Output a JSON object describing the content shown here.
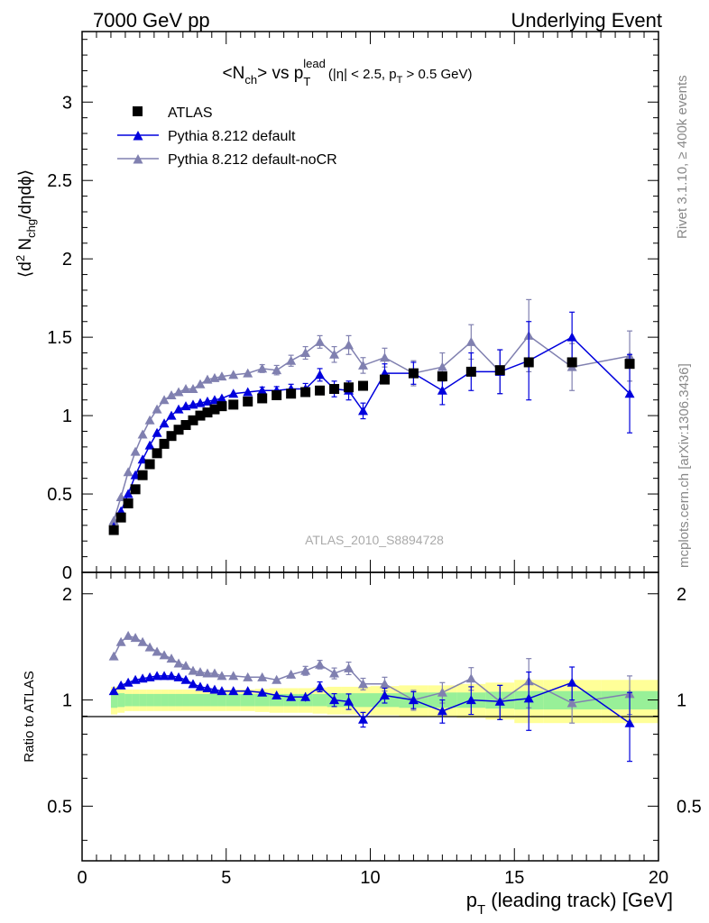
{
  "header": {
    "left": "7000 GeV pp",
    "right": "Underlying Event"
  },
  "side_text": {
    "rivet": "Rivet 3.1.10, ≥ 400k events",
    "mcplots": "mcplots.cern.ch [arXiv:1306.3436]"
  },
  "analysis_id": "ATLAS_2010_S8894728",
  "colors": {
    "atlas": "#000000",
    "default": "#0000dd",
    "nocr": "#8080b0",
    "band_inner": "#98f098",
    "band_outer": "#ffff98"
  },
  "chart_data": [
    {
      "type": "scatter",
      "panel": "main",
      "title": "<N_ch> vs p_T^lead (|η| < 2.5, p_T > 0.5 GeV)",
      "title_parts": {
        "a": "<N",
        "a_sub": "ch",
        "b": "> vs p",
        "b_sub": "T",
        "b_sup": "lead",
        "c": "(|η| < 2.5, p",
        "c_sub": "T",
        "d": " > 0.5 GeV)"
      },
      "ylabel": "⟨d² N_chg/dηdϕ⟩",
      "ylabel_parts": {
        "a": "⟨d",
        "sup": "2",
        "b": " N",
        "sub": "chg",
        "c": "/dηdϕ⟩"
      },
      "xlim": [
        0,
        20
      ],
      "ylim": [
        0,
        3.45
      ],
      "yticks": [
        "0",
        "0.5",
        "1",
        "1.5",
        "2",
        "2.5",
        "3"
      ],
      "ytick_values": [
        0,
        0.5,
        1,
        1.5,
        2,
        2.5,
        3
      ],
      "legend": {
        "placement": "top-left"
      },
      "series": [
        {
          "name": "ATLAS",
          "marker": "square",
          "x": [
            1.1,
            1.35,
            1.6,
            1.85,
            2.1,
            2.35,
            2.6,
            2.85,
            3.1,
            3.35,
            3.6,
            3.85,
            4.1,
            4.35,
            4.6,
            4.85,
            5.25,
            5.75,
            6.25,
            6.75,
            7.25,
            7.75,
            8.25,
            8.75,
            9.25,
            9.75,
            10.5,
            11.5,
            12.5,
            13.5,
            14.5,
            15.5,
            17.0,
            19.0
          ],
          "y": [
            0.27,
            0.35,
            0.44,
            0.53,
            0.62,
            0.69,
            0.76,
            0.82,
            0.87,
            0.91,
            0.94,
            0.97,
            1.0,
            1.02,
            1.04,
            1.06,
            1.07,
            1.09,
            1.11,
            1.13,
            1.14,
            1.15,
            1.16,
            1.17,
            1.18,
            1.19,
            1.23,
            1.27,
            1.25,
            1.28,
            1.29,
            1.34,
            1.34,
            1.33
          ]
        },
        {
          "name": "Pythia 8.212 default",
          "marker": "triangle",
          "x": [
            1.1,
            1.35,
            1.6,
            1.85,
            2.1,
            2.35,
            2.6,
            2.85,
            3.1,
            3.35,
            3.6,
            3.85,
            4.1,
            4.35,
            4.6,
            4.85,
            5.25,
            5.75,
            6.25,
            6.75,
            7.25,
            7.75,
            8.25,
            8.75,
            9.25,
            9.75,
            10.5,
            11.5,
            12.5,
            13.5,
            14.5,
            15.5,
            17.0,
            19.0
          ],
          "y": [
            0.29,
            0.39,
            0.5,
            0.62,
            0.72,
            0.81,
            0.89,
            0.95,
            1.0,
            1.04,
            1.06,
            1.07,
            1.08,
            1.09,
            1.1,
            1.11,
            1.14,
            1.15,
            1.16,
            1.16,
            1.17,
            1.17,
            1.26,
            1.17,
            1.16,
            1.03,
            1.27,
            1.27,
            1.16,
            1.28,
            1.28,
            1.35,
            1.5,
            1.14
          ],
          "yerr": [
            0.003,
            0.004,
            0.005,
            0.005,
            0.006,
            0.007,
            0.008,
            0.008,
            0.009,
            0.01,
            0.01,
            0.012,
            0.012,
            0.014,
            0.015,
            0.016,
            0.018,
            0.02,
            0.022,
            0.025,
            0.03,
            0.035,
            0.04,
            0.05,
            0.06,
            0.05,
            0.06,
            0.07,
            0.09,
            0.12,
            0.14,
            0.25,
            0.16,
            0.25
          ]
        },
        {
          "name": "Pythia 8.212 default-noCR",
          "marker": "triangle",
          "x": [
            1.1,
            1.35,
            1.6,
            1.85,
            2.1,
            2.35,
            2.6,
            2.85,
            3.1,
            3.35,
            3.6,
            3.85,
            4.1,
            4.35,
            4.6,
            4.85,
            5.25,
            5.75,
            6.25,
            6.75,
            7.25,
            7.75,
            8.25,
            8.75,
            9.25,
            9.75,
            10.5,
            11.5,
            12.5,
            13.5,
            14.5,
            15.5,
            17.0,
            19.0
          ],
          "y": [
            0.33,
            0.48,
            0.64,
            0.77,
            0.88,
            0.97,
            1.04,
            1.1,
            1.13,
            1.15,
            1.17,
            1.17,
            1.2,
            1.23,
            1.24,
            1.25,
            1.26,
            1.27,
            1.3,
            1.29,
            1.35,
            1.4,
            1.47,
            1.39,
            1.45,
            1.32,
            1.37,
            1.27,
            1.31,
            1.47,
            1.28,
            1.51,
            1.31,
            1.38
          ],
          "yerr": [
            0.004,
            0.005,
            0.005,
            0.006,
            0.006,
            0.007,
            0.008,
            0.008,
            0.01,
            0.01,
            0.012,
            0.012,
            0.013,
            0.014,
            0.015,
            0.016,
            0.018,
            0.02,
            0.025,
            0.03,
            0.035,
            0.04,
            0.04,
            0.05,
            0.06,
            0.05,
            0.06,
            0.08,
            0.09,
            0.11,
            0.14,
            0.23,
            0.15,
            0.16
          ]
        }
      ]
    },
    {
      "type": "scatter",
      "panel": "ratio",
      "xlabel": "p_T (leading track) [GeV]",
      "xlabel_parts": {
        "a": "p",
        "sub": "T",
        "b": " (leading track) [GeV]"
      },
      "ylabel": "Ratio to ATLAS",
      "xlim": [
        0,
        20
      ],
      "ylim": [
        0.35,
        2.3
      ],
      "yticks": [
        "0.5",
        "1",
        "2"
      ],
      "ytick_values": [
        0.5,
        1,
        2
      ],
      "xticks": [
        "0",
        "5",
        "10",
        "15",
        "20"
      ],
      "xtick_values": [
        0,
        5,
        10,
        15,
        20
      ],
      "reference": 1,
      "band_inner": {
        "x_low": [
          1.0,
          1.225,
          1.475,
          1.725,
          1.975,
          2.225,
          2.475,
          2.725,
          2.975,
          3.225,
          3.475,
          3.725,
          3.975,
          4.225,
          4.475,
          4.725,
          5.0,
          5.5,
          6.0,
          6.5,
          7.0,
          7.5,
          8.0,
          8.5,
          9.0,
          9.5,
          10.0,
          11.0,
          12.0,
          13.0,
          14.0,
          15.0,
          16.0,
          18.0
        ],
        "x_high": [
          1.225,
          1.475,
          1.725,
          1.975,
          2.225,
          2.475,
          2.725,
          2.975,
          3.225,
          3.475,
          3.725,
          3.975,
          4.225,
          4.475,
          4.725,
          5.0,
          5.5,
          6.0,
          6.5,
          7.0,
          7.5,
          8.0,
          8.5,
          9.0,
          9.5,
          10.0,
          11.0,
          12.0,
          13.0,
          14.0,
          15.0,
          16.0,
          18.0,
          20.0
        ],
        "half_width": [
          0.05,
          0.045,
          0.04,
          0.04,
          0.04,
          0.04,
          0.04,
          0.04,
          0.04,
          0.04,
          0.04,
          0.04,
          0.04,
          0.04,
          0.04,
          0.04,
          0.04,
          0.04,
          0.04,
          0.04,
          0.04,
          0.04,
          0.04,
          0.045,
          0.045,
          0.045,
          0.045,
          0.05,
          0.05,
          0.05,
          0.055,
          0.06,
          0.06,
          0.06
        ]
      },
      "band_outer": {
        "half_width": [
          0.09,
          0.08,
          0.07,
          0.07,
          0.07,
          0.07,
          0.07,
          0.07,
          0.07,
          0.07,
          0.07,
          0.07,
          0.07,
          0.07,
          0.07,
          0.07,
          0.07,
          0.07,
          0.075,
          0.08,
          0.08,
          0.08,
          0.085,
          0.09,
          0.09,
          0.09,
          0.095,
          0.1,
          0.1,
          0.11,
          0.12,
          0.14,
          0.14,
          0.14
        ]
      },
      "series": [
        {
          "name": "Pythia 8.212 default",
          "y": [
            1.06,
            1.1,
            1.12,
            1.14,
            1.15,
            1.16,
            1.17,
            1.17,
            1.17,
            1.16,
            1.14,
            1.11,
            1.09,
            1.08,
            1.07,
            1.06,
            1.06,
            1.06,
            1.05,
            1.03,
            1.02,
            1.02,
            1.09,
            1.0,
            0.99,
            0.88,
            1.03,
            1.0,
            0.93,
            1.0,
            0.99,
            1.01,
            1.12,
            0.86
          ],
          "yerr": [
            0.01,
            0.01,
            0.01,
            0.01,
            0.01,
            0.01,
            0.01,
            0.01,
            0.01,
            0.01,
            0.012,
            0.012,
            0.013,
            0.014,
            0.015,
            0.016,
            0.017,
            0.018,
            0.02,
            0.022,
            0.026,
            0.03,
            0.035,
            0.042,
            0.05,
            0.042,
            0.05,
            0.055,
            0.07,
            0.09,
            0.11,
            0.19,
            0.12,
            0.19
          ]
        },
        {
          "name": "Pythia 8.212 default-noCR",
          "y": [
            1.33,
            1.46,
            1.52,
            1.5,
            1.46,
            1.41,
            1.37,
            1.34,
            1.31,
            1.27,
            1.25,
            1.21,
            1.2,
            1.19,
            1.19,
            1.17,
            1.17,
            1.16,
            1.16,
            1.14,
            1.18,
            1.21,
            1.26,
            1.19,
            1.23,
            1.11,
            1.11,
            1.0,
            1.05,
            1.15,
            0.99,
            1.13,
            0.98,
            1.04
          ],
          "yerr": [
            0.012,
            0.012,
            0.012,
            0.012,
            0.012,
            0.012,
            0.012,
            0.012,
            0.012,
            0.012,
            0.013,
            0.013,
            0.014,
            0.015,
            0.016,
            0.017,
            0.018,
            0.019,
            0.022,
            0.026,
            0.03,
            0.035,
            0.035,
            0.042,
            0.05,
            0.042,
            0.05,
            0.065,
            0.07,
            0.085,
            0.11,
            0.18,
            0.12,
            0.13
          ]
        }
      ]
    }
  ]
}
